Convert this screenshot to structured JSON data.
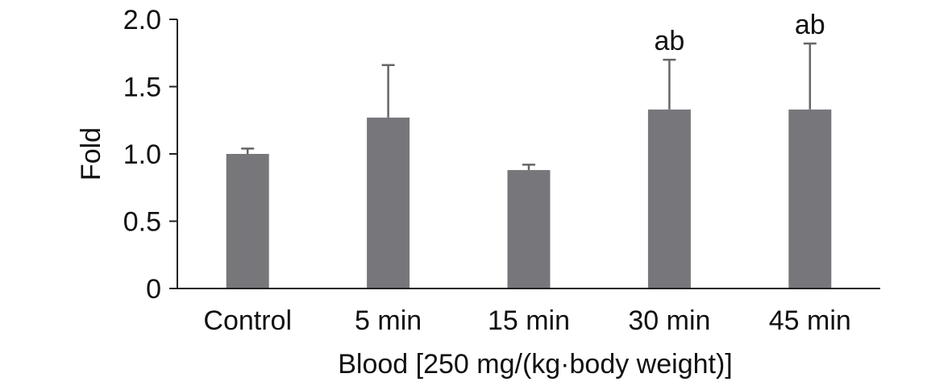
{
  "chart_data": {
    "type": "bar",
    "categories": [
      "Control",
      "5 min",
      "15 min",
      "30 min",
      "45 min"
    ],
    "values": [
      1.0,
      1.27,
      0.88,
      1.33,
      1.33
    ],
    "errors": [
      0.04,
      0.39,
      0.04,
      0.37,
      0.49
    ],
    "annotations": [
      "",
      "",
      "",
      "ab",
      "ab"
    ],
    "title": "",
    "xlabel": "Blood [250 mg/(kg·body weight)]",
    "ylabel": "Fold",
    "ylim": [
      0,
      2.0
    ],
    "yticks": [
      0,
      0.5,
      1.0,
      1.5,
      2.0
    ],
    "ytick_labels": [
      "0",
      "0.5",
      "1.0",
      "1.5",
      "2.0"
    ],
    "grid": false,
    "legend": "none",
    "bar_color": "#77777b",
    "error_color": "#666666",
    "axis_color": "#222222"
  }
}
